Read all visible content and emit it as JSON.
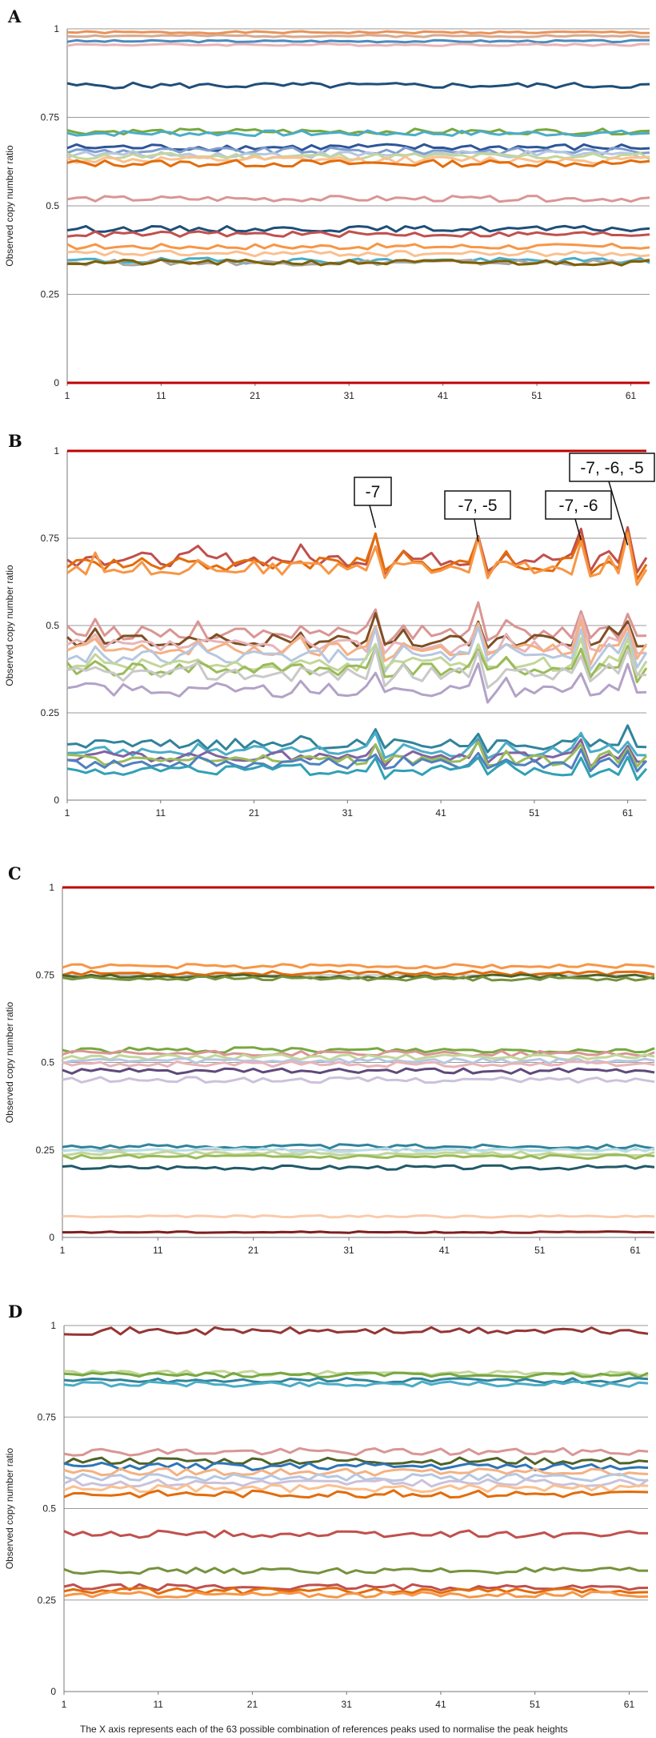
{
  "figure": {
    "footnote": "The X axis represents  each of the 63 possible combination of references peaks used to normalise the peak heights"
  },
  "chart_data": [
    {
      "type": "line",
      "panel": "A",
      "ylabel": "Observed copy number ratio",
      "xlabel": "",
      "ylim": [
        0,
        1
      ],
      "x_range": [
        1,
        63
      ],
      "x_ticks": [
        "1",
        "11",
        "21",
        "31",
        "41",
        "51",
        "61"
      ],
      "y_ticks": [
        "0",
        "0.25",
        "0.5",
        "0.75",
        "1"
      ],
      "grid": true,
      "series": [
        {
          "name": "s1",
          "color": "#E8935A",
          "base": 0.99,
          "amp": 0.003,
          "seed": 1
        },
        {
          "name": "s2",
          "color": "#D9A98F",
          "base": 0.98,
          "amp": 0.003,
          "seed": 2
        },
        {
          "name": "s3",
          "color": "#4B8BBE",
          "base": 0.965,
          "amp": 0.003,
          "seed": 3
        },
        {
          "name": "s4",
          "color": "#E8B4B8",
          "base": 0.955,
          "amp": 0.003,
          "seed": 4
        },
        {
          "name": "s5",
          "color": "#1F4E79",
          "base": 0.84,
          "amp": 0.008,
          "seed": 5
        },
        {
          "name": "s6",
          "color": "#76A840",
          "base": 0.71,
          "amp": 0.008,
          "seed": 6
        },
        {
          "name": "s7",
          "color": "#4BACC6",
          "base": 0.705,
          "amp": 0.008,
          "seed": 7
        },
        {
          "name": "s8",
          "color": "#2E5597",
          "base": 0.665,
          "amp": 0.01,
          "seed": 8
        },
        {
          "name": "s9",
          "color": "#7F9ECF",
          "base": 0.655,
          "amp": 0.01,
          "seed": 9
        },
        {
          "name": "s10",
          "color": "#B7C7E0",
          "base": 0.645,
          "amp": 0.01,
          "seed": 10
        },
        {
          "name": "s11",
          "color": "#C3D69B",
          "base": 0.64,
          "amp": 0.01,
          "seed": 11
        },
        {
          "name": "s12",
          "color": "#FAC090",
          "base": 0.63,
          "amp": 0.01,
          "seed": 12
        },
        {
          "name": "s13",
          "color": "#E36C0A",
          "base": 0.62,
          "amp": 0.01,
          "seed": 13
        },
        {
          "name": "s14",
          "color": "#D99694",
          "base": 0.52,
          "amp": 0.008,
          "seed": 14
        },
        {
          "name": "s15",
          "color": "#1F4E79",
          "base": 0.435,
          "amp": 0.008,
          "seed": 15
        },
        {
          "name": "s16",
          "color": "#C0504D",
          "base": 0.42,
          "amp": 0.008,
          "seed": 16
        },
        {
          "name": "s17",
          "color": "#F79646",
          "base": 0.385,
          "amp": 0.008,
          "seed": 17
        },
        {
          "name": "s18",
          "color": "#FAC090",
          "base": 0.365,
          "amp": 0.008,
          "seed": 18
        },
        {
          "name": "s19",
          "color": "#4BACC6",
          "base": 0.345,
          "amp": 0.008,
          "seed": 19
        },
        {
          "name": "s20",
          "color": "#A6A6A6",
          "base": 0.34,
          "amp": 0.008,
          "seed": 20
        },
        {
          "name": "s21",
          "color": "#7F6000",
          "base": 0.34,
          "amp": 0.008,
          "seed": 21
        },
        {
          "name": "s22",
          "color": "#C00000",
          "base": 0.0,
          "amp": 0.0,
          "seed": 22
        }
      ],
      "annotations": []
    },
    {
      "type": "line",
      "panel": "B",
      "ylabel": "Observed copy number ratio",
      "xlabel": "",
      "ylim": [
        0,
        1
      ],
      "x_range": [
        1,
        63
      ],
      "x_ticks": [
        "1",
        "11",
        "21",
        "31",
        "41",
        "51",
        "61"
      ],
      "y_ticks": [
        "0",
        "0.25",
        "0.5",
        "0.75",
        "1"
      ],
      "grid": true,
      "spikes": [
        34,
        45,
        56,
        61
      ],
      "series": [
        {
          "name": "s1",
          "color": "#C00000",
          "base": 1.0,
          "amp": 0.0,
          "spike": 0.0,
          "seed": 31
        },
        {
          "name": "s2",
          "color": "#C0504D",
          "base": 0.69,
          "amp": 0.02,
          "spike": 0.08,
          "seed": 32
        },
        {
          "name": "s3",
          "color": "#E36C0A",
          "base": 0.675,
          "amp": 0.02,
          "spike": 0.08,
          "seed": 33
        },
        {
          "name": "s4",
          "color": "#F79646",
          "base": 0.665,
          "amp": 0.02,
          "spike": 0.08,
          "seed": 34
        },
        {
          "name": "s5",
          "color": "#D99694",
          "base": 0.48,
          "amp": 0.02,
          "spike": 0.07,
          "seed": 35
        },
        {
          "name": "s6",
          "color": "#7F4F24",
          "base": 0.455,
          "amp": 0.02,
          "spike": 0.07,
          "seed": 36
        },
        {
          "name": "s7",
          "color": "#E8B4B8",
          "base": 0.44,
          "amp": 0.02,
          "spike": 0.07,
          "seed": 37
        },
        {
          "name": "s8",
          "color": "#F4B183",
          "base": 0.43,
          "amp": 0.02,
          "spike": 0.07,
          "seed": 38
        },
        {
          "name": "s9",
          "color": "#B7C7E0",
          "base": 0.41,
          "amp": 0.02,
          "spike": 0.07,
          "seed": 39
        },
        {
          "name": "s10",
          "color": "#C3D69B",
          "base": 0.39,
          "amp": 0.02,
          "spike": 0.07,
          "seed": 40
        },
        {
          "name": "s11",
          "color": "#9BBB59",
          "base": 0.375,
          "amp": 0.02,
          "spike": 0.06,
          "seed": 41
        },
        {
          "name": "s12",
          "color": "#C9C9C9",
          "base": 0.36,
          "amp": 0.02,
          "spike": 0.06,
          "seed": 42
        },
        {
          "name": "s13",
          "color": "#B3A2C7",
          "base": 0.315,
          "amp": 0.02,
          "spike": 0.06,
          "seed": 43
        },
        {
          "name": "s14",
          "color": "#31849B",
          "base": 0.16,
          "amp": 0.015,
          "spike": 0.04,
          "seed": 44
        },
        {
          "name": "s15",
          "color": "#4BACC6",
          "base": 0.14,
          "amp": 0.015,
          "spike": 0.04,
          "seed": 45
        },
        {
          "name": "s16",
          "color": "#8064A2",
          "base": 0.125,
          "amp": 0.015,
          "spike": 0.04,
          "seed": 46
        },
        {
          "name": "s17",
          "color": "#9BBB59",
          "base": 0.115,
          "amp": 0.015,
          "spike": 0.04,
          "seed": 47
        },
        {
          "name": "s18",
          "color": "#4F81BD",
          "base": 0.105,
          "amp": 0.015,
          "spike": 0.04,
          "seed": 48
        },
        {
          "name": "s19",
          "color": "#31A0B5",
          "base": 0.085,
          "amp": 0.015,
          "spike": 0.04,
          "seed": 49
        }
      ],
      "annotations": [
        {
          "text": "-7",
          "x": 34,
          "y": 0.78
        },
        {
          "text": "-7, -5",
          "x": 45,
          "y": 0.74
        },
        {
          "text": "-7, -6",
          "x": 56,
          "y": 0.745
        },
        {
          "text": "-7, -6, -5",
          "x": 61,
          "y": 0.73
        }
      ]
    },
    {
      "type": "line",
      "panel": "C",
      "ylabel": "Observed copy number ratio",
      "xlabel": "",
      "ylim": [
        0,
        1
      ],
      "x_range": [
        1,
        63
      ],
      "x_ticks": [
        "1",
        "11",
        "21",
        "31",
        "41",
        "51",
        "61"
      ],
      "y_ticks": [
        "0",
        "0.25",
        "0.5",
        "0.75",
        "1"
      ],
      "grid": true,
      "series": [
        {
          "name": "s1",
          "color": "#C00000",
          "base": 1.0,
          "amp": 0.0,
          "seed": 51
        },
        {
          "name": "s2",
          "color": "#F79646",
          "base": 0.775,
          "amp": 0.006,
          "seed": 52
        },
        {
          "name": "s3",
          "color": "#E36C0A",
          "base": 0.755,
          "amp": 0.006,
          "seed": 53
        },
        {
          "name": "s4",
          "color": "#4F6228",
          "base": 0.745,
          "amp": 0.006,
          "seed": 54
        },
        {
          "name": "s5",
          "color": "#76923C",
          "base": 0.74,
          "amp": 0.006,
          "seed": 55
        },
        {
          "name": "s6",
          "color": "#76A840",
          "base": 0.535,
          "amp": 0.008,
          "seed": 56
        },
        {
          "name": "s7",
          "color": "#D99694",
          "base": 0.525,
          "amp": 0.008,
          "seed": 57
        },
        {
          "name": "s8",
          "color": "#C3D69B",
          "base": 0.515,
          "amp": 0.008,
          "seed": 58
        },
        {
          "name": "s9",
          "color": "#B7C7E0",
          "base": 0.505,
          "amp": 0.008,
          "seed": 59
        },
        {
          "name": "s10",
          "color": "#E8B4B8",
          "base": 0.495,
          "amp": 0.008,
          "seed": 60
        },
        {
          "name": "s11",
          "color": "#5F497A",
          "base": 0.475,
          "amp": 0.008,
          "seed": 61
        },
        {
          "name": "s12",
          "color": "#CCC1DA",
          "base": 0.45,
          "amp": 0.008,
          "seed": 62
        },
        {
          "name": "s13",
          "color": "#31849B",
          "base": 0.26,
          "amp": 0.006,
          "seed": 63
        },
        {
          "name": "s14",
          "color": "#B7DEE8",
          "base": 0.25,
          "amp": 0.006,
          "seed": 64
        },
        {
          "name": "s15",
          "color": "#C3D69B",
          "base": 0.24,
          "amp": 0.006,
          "seed": 65
        },
        {
          "name": "s16",
          "color": "#9BBB59",
          "base": 0.23,
          "amp": 0.006,
          "seed": 66
        },
        {
          "name": "s17",
          "color": "#215967",
          "base": 0.2,
          "amp": 0.006,
          "seed": 67
        },
        {
          "name": "s18",
          "color": "#F8CBAD",
          "base": 0.06,
          "amp": 0.003,
          "seed": 68
        },
        {
          "name": "s19",
          "color": "#7F1F1F",
          "base": 0.015,
          "amp": 0.002,
          "seed": 69
        }
      ],
      "annotations": []
    },
    {
      "type": "line",
      "panel": "D",
      "ylabel": "Observed copy number ratio",
      "xlabel": "The X axis represents  each of the 63 possible combination of references peaks used to normalise the peak heights",
      "ylim": [
        0,
        1
      ],
      "x_range": [
        1,
        63
      ],
      "x_ticks": [
        "1",
        "11",
        "21",
        "31",
        "41",
        "51",
        "61"
      ],
      "y_ticks": [
        "0",
        "0.25",
        "0.5",
        "0.75",
        "1"
      ],
      "grid": true,
      "series": [
        {
          "name": "s1",
          "color": "#943634",
          "base": 0.985,
          "amp": 0.01,
          "seed": 71
        },
        {
          "name": "s2",
          "color": "#C3D69B",
          "base": 0.87,
          "amp": 0.007,
          "seed": 72
        },
        {
          "name": "s3",
          "color": "#76A840",
          "base": 0.865,
          "amp": 0.007,
          "seed": 73
        },
        {
          "name": "s4",
          "color": "#31849B",
          "base": 0.85,
          "amp": 0.007,
          "seed": 74
        },
        {
          "name": "s5",
          "color": "#4BACC6",
          "base": 0.84,
          "amp": 0.007,
          "seed": 75
        },
        {
          "name": "s6",
          "color": "#D99694",
          "base": 0.655,
          "amp": 0.01,
          "seed": 76
        },
        {
          "name": "s7",
          "color": "#4F6228",
          "base": 0.63,
          "amp": 0.01,
          "seed": 77
        },
        {
          "name": "s8",
          "color": "#2E75B6",
          "base": 0.615,
          "amp": 0.01,
          "seed": 78
        },
        {
          "name": "s9",
          "color": "#F4B183",
          "base": 0.6,
          "amp": 0.01,
          "seed": 79
        },
        {
          "name": "s10",
          "color": "#B7C7E0",
          "base": 0.585,
          "amp": 0.01,
          "seed": 80
        },
        {
          "name": "s11",
          "color": "#CCC1DA",
          "base": 0.57,
          "amp": 0.01,
          "seed": 81
        },
        {
          "name": "s12",
          "color": "#FAC090",
          "base": 0.555,
          "amp": 0.01,
          "seed": 82
        },
        {
          "name": "s13",
          "color": "#E36C0A",
          "base": 0.54,
          "amp": 0.01,
          "seed": 83
        },
        {
          "name": "s14",
          "color": "#C0504D",
          "base": 0.43,
          "amp": 0.01,
          "seed": 84
        },
        {
          "name": "s15",
          "color": "#76923C",
          "base": 0.33,
          "amp": 0.008,
          "seed": 85
        },
        {
          "name": "s16",
          "color": "#C0504D",
          "base": 0.285,
          "amp": 0.008,
          "seed": 86
        },
        {
          "name": "s17",
          "color": "#E36C0A",
          "base": 0.275,
          "amp": 0.008,
          "seed": 87
        },
        {
          "name": "s18",
          "color": "#F79646",
          "base": 0.265,
          "amp": 0.008,
          "seed": 88
        }
      ],
      "annotations": []
    }
  ]
}
